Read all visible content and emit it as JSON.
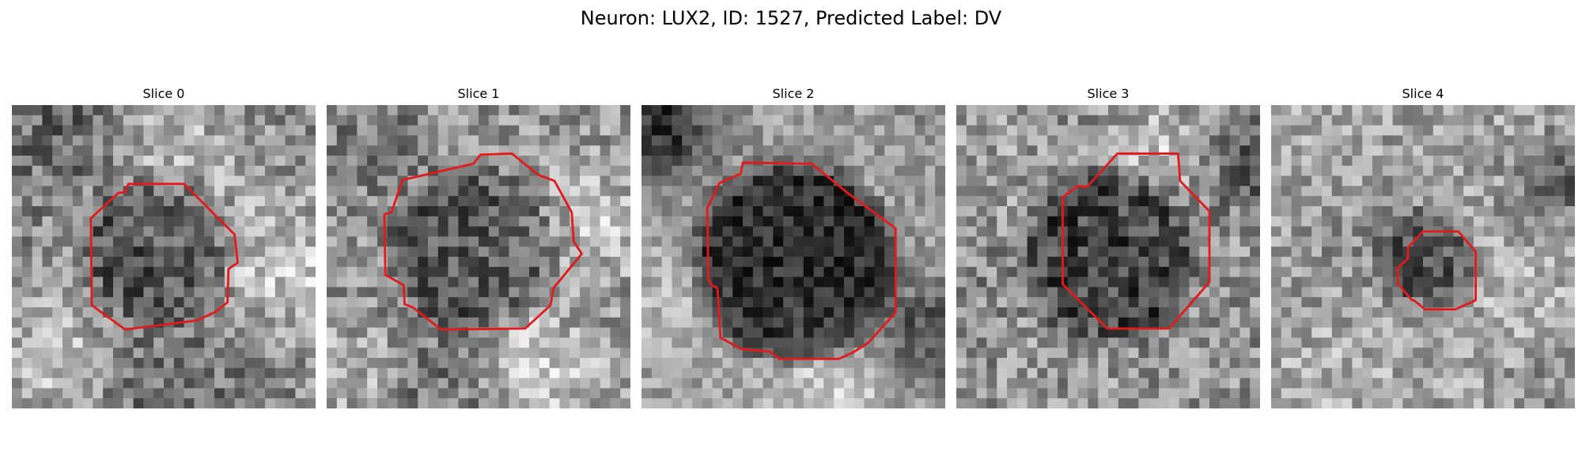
{
  "figure": {
    "title": "Neuron: LUX2, ID: 1527, Predicted Label: DV"
  },
  "panels": [
    {
      "title": "Slice 0"
    },
    {
      "title": "Slice 1"
    },
    {
      "title": "Slice 2"
    },
    {
      "title": "Slice 3"
    },
    {
      "title": "Slice 4"
    }
  ],
  "colors": {
    "contour": "#e31a1c",
    "background": "#ffffff"
  }
}
